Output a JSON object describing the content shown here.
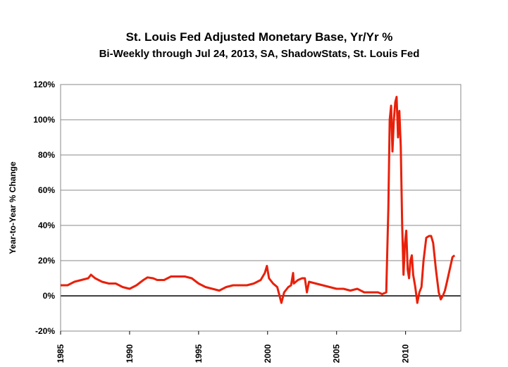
{
  "chart_data": {
    "type": "line",
    "title": "St. Louis Fed Adjusted Monetary Base, Yr/Yr %",
    "subtitle": "Bi-Weekly through Jul 24, 2013, SA, ShadowStats, St. Louis Fed",
    "y_label": "Year-to-Year % Change",
    "xlim": [
      1985,
      2014
    ],
    "xticks": [
      1985,
      1990,
      1995,
      2000,
      2005,
      2010
    ],
    "ylim": [
      -20,
      120
    ],
    "yticks": [
      {
        "value": -20,
        "label": "-20%"
      },
      {
        "value": 0,
        "label": "0%"
      },
      {
        "value": 20,
        "label": "20%"
      },
      {
        "value": 40,
        "label": "40%"
      },
      {
        "value": 60,
        "label": "60%"
      },
      {
        "value": 80,
        "label": "80%"
      },
      {
        "value": 100,
        "label": "100%"
      },
      {
        "value": 120,
        "label": "120%"
      }
    ],
    "grid": true,
    "series": [
      {
        "color": "#e8200a",
        "x": [
          1985.0,
          1985.5,
          1986,
          1986.5,
          1987,
          1987.2,
          1987.5,
          1988,
          1988.5,
          1989,
          1989.5,
          1990,
          1990.5,
          1991,
          1991.3,
          1991.7,
          1992,
          1992.5,
          1993,
          1993.5,
          1994,
          1994.5,
          1995,
          1995.5,
          1996,
          1996.5,
          1997,
          1997.5,
          1998,
          1998.5,
          1999,
          1999.5,
          1999.8,
          1999.95,
          2000.1,
          2000.4,
          2000.7,
          2001,
          2001.2,
          2001.5,
          2001.7,
          2001.85,
          2001.9,
          2002.2,
          2002.5,
          2002.7,
          2002.85,
          2003,
          2003.5,
          2004,
          2004.5,
          2005,
          2005.5,
          2006,
          2006.5,
          2007,
          2007.5,
          2008,
          2008.3,
          2008.6,
          2008.75,
          2008.85,
          2008.95,
          2009.05,
          2009.15,
          2009.25,
          2009.35,
          2009.45,
          2009.55,
          2009.65,
          2009.75,
          2009.85,
          2009.95,
          2010.05,
          2010.15,
          2010.25,
          2010.35,
          2010.45,
          2010.55,
          2010.7,
          2010.85,
          2011.0,
          2011.15,
          2011.3,
          2011.5,
          2011.7,
          2011.85,
          2012,
          2012.2,
          2012.4,
          2012.55,
          2012.7,
          2012.85,
          2013.0,
          2013.2,
          2013.4,
          2013.55
        ],
        "values": [
          6,
          6,
          8,
          9,
          10,
          12,
          10,
          8,
          7,
          7,
          5,
          4,
          6,
          9,
          10.5,
          10,
          9,
          9,
          11,
          11,
          11,
          10,
          7,
          5,
          4,
          3,
          5,
          6,
          6,
          6,
          7,
          9,
          13,
          17,
          10,
          7,
          5,
          -4,
          2,
          5,
          6,
          13,
          7,
          9,
          10,
          10,
          2,
          8,
          7,
          6,
          5,
          4,
          4,
          3,
          4,
          2,
          2,
          2,
          1,
          2,
          50,
          100,
          108,
          82,
          100,
          110,
          113,
          90,
          105,
          85,
          40,
          12,
          30,
          37,
          15,
          10,
          20,
          23,
          12,
          5,
          -4,
          2,
          5,
          20,
          33,
          34,
          34,
          30,
          15,
          2,
          -2,
          0,
          3,
          8,
          15,
          22,
          23
        ]
      }
    ]
  }
}
